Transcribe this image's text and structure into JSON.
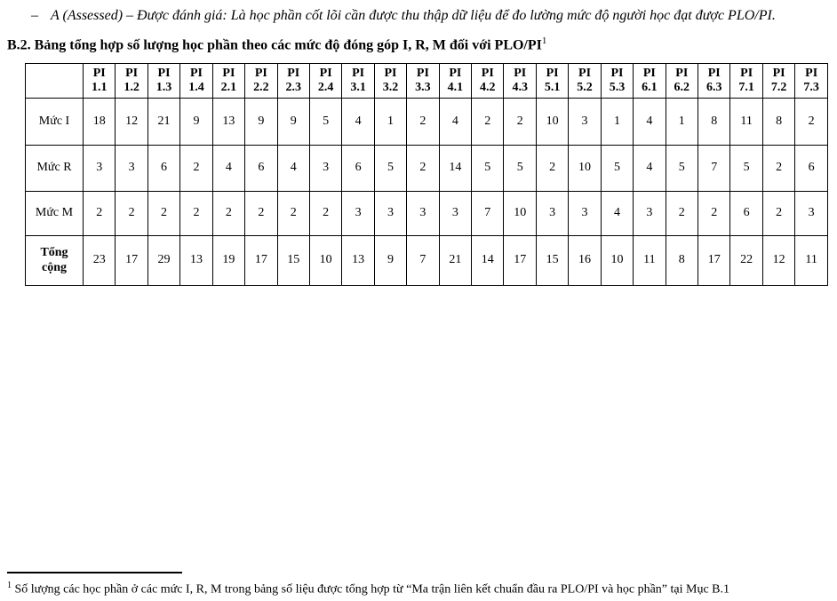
{
  "page": {
    "intro_marker": "–",
    "intro_text": "A (Assessed) – Được đánh giá: Là học phần cốt lõi cần được thu thập dữ liệu để đo lường mức độ người học đạt được PLO/PI.",
    "heading_text": "B.2. Bảng tổng hợp số lượng học phần theo các mức độ đóng góp I, R, M đối với PLO/PI",
    "heading_superscript": "1"
  },
  "table": {
    "corner_label": "",
    "column_headers": [
      "PI 1.1",
      "PI 1.2",
      "PI 1.3",
      "PI 1.4",
      "PI 2.1",
      "PI 2.2",
      "PI 2.3",
      "PI 2.4",
      "PI 3.1",
      "PI 3.2",
      "PI 3.3",
      "PI 4.1",
      "PI 4.2",
      "PI 4.3",
      "PI 5.1",
      "PI 5.2",
      "PI 5.3",
      "PI 6.1",
      "PI 6.2",
      "PI 6.3",
      "PI 7.1",
      "PI 7.2",
      "PI 7.3"
    ],
    "rows": [
      {
        "label": "Mức I",
        "bold": false,
        "values": [
          18,
          12,
          21,
          9,
          13,
          9,
          9,
          5,
          4,
          1,
          2,
          4,
          2,
          2,
          10,
          3,
          1,
          4,
          1,
          8,
          11,
          8,
          2
        ]
      },
      {
        "label": "Mức R",
        "bold": false,
        "values": [
          3,
          3,
          6,
          2,
          4,
          6,
          4,
          3,
          6,
          5,
          2,
          14,
          5,
          5,
          2,
          10,
          5,
          4,
          5,
          7,
          5,
          2,
          6
        ]
      },
      {
        "label": "Mức M",
        "bold": false,
        "values": [
          2,
          2,
          2,
          2,
          2,
          2,
          2,
          2,
          3,
          3,
          3,
          3,
          7,
          10,
          3,
          3,
          4,
          3,
          2,
          2,
          6,
          2,
          3
        ]
      },
      {
        "label": "Tổng cộng",
        "bold": true,
        "values": [
          23,
          17,
          29,
          13,
          19,
          17,
          15,
          10,
          13,
          9,
          7,
          21,
          14,
          17,
          15,
          16,
          10,
          11,
          8,
          17,
          22,
          12,
          11
        ]
      }
    ]
  },
  "footnote": {
    "marker": "1",
    "text": "Số lượng các học phần ở các mức I, R, M trong bảng số liệu được tổng hợp từ “Ma trận liên kết chuẩn đầu ra PLO/PI và học phần” tại Mục B.1"
  }
}
